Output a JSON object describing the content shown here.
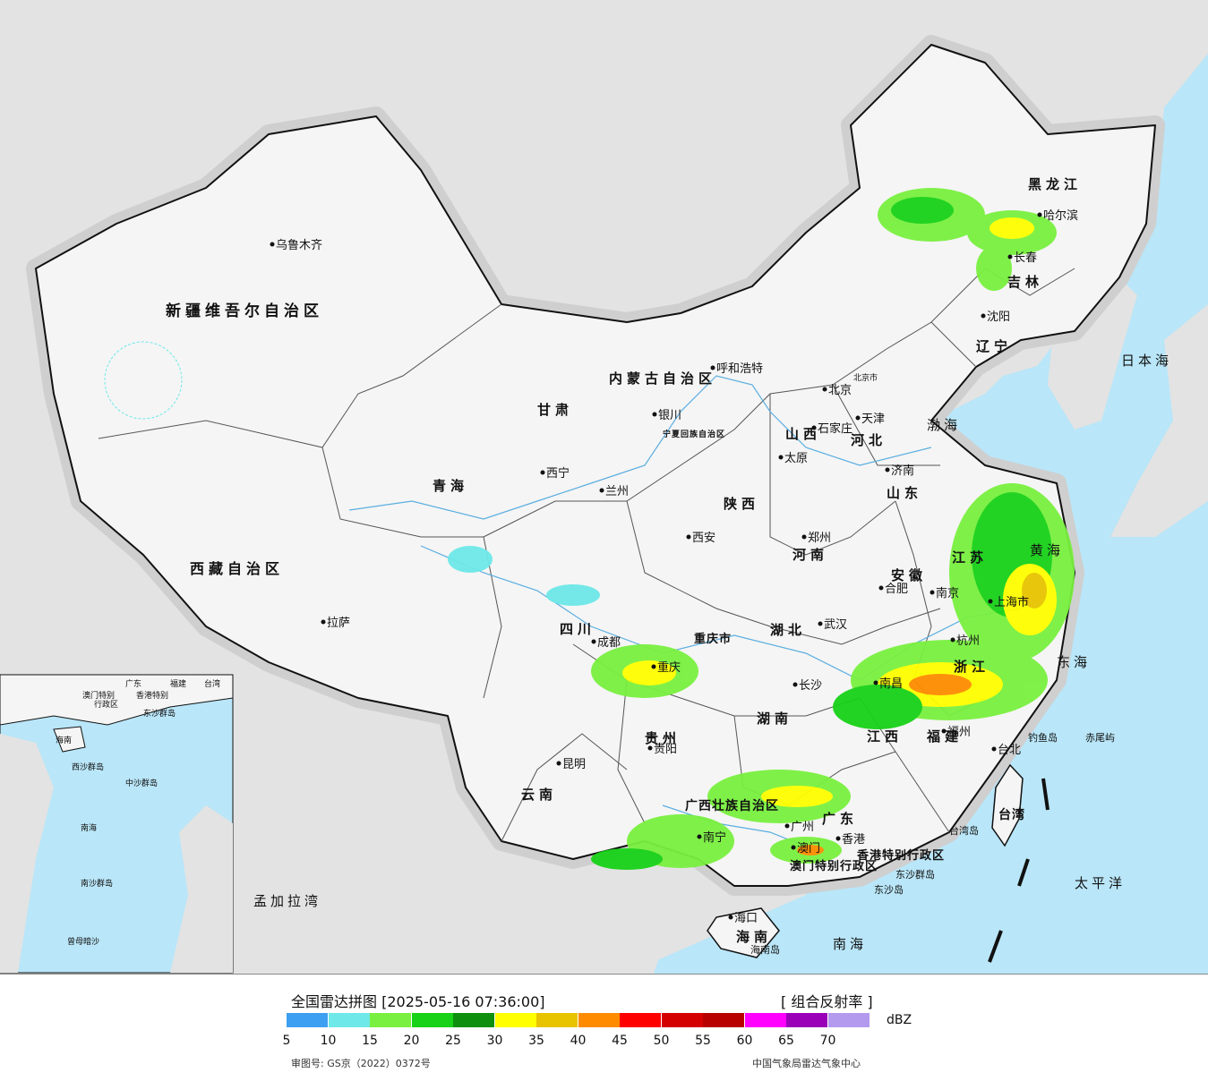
{
  "map": {
    "colors": {
      "sea": "#b9e6f8",
      "land_foreign": "#e3e3e3",
      "land_china": "#f5f5f5",
      "halo": "#cfcfcf",
      "border": "#111111",
      "river": "#5aaee0"
    },
    "cities": [
      {
        "name": "乌鲁木齐",
        "dot": true
      },
      {
        "name": "拉萨",
        "dot": true
      },
      {
        "name": "西宁",
        "dot": true
      },
      {
        "name": "兰州",
        "dot": true
      },
      {
        "name": "银川",
        "dot": true
      },
      {
        "name": "呼和浩特",
        "dot": true
      },
      {
        "name": "北京",
        "dot": true
      },
      {
        "name": "北京市",
        "dot": false
      },
      {
        "name": "天津",
        "dot": true
      },
      {
        "name": "石家庄",
        "dot": true
      },
      {
        "name": "太原",
        "dot": true
      },
      {
        "name": "济南",
        "dot": true
      },
      {
        "name": "郑州",
        "dot": true
      },
      {
        "name": "西安",
        "dot": true
      },
      {
        "name": "成都",
        "dot": true
      },
      {
        "name": "重庆",
        "dot": true
      },
      {
        "name": "武汉",
        "dot": true
      },
      {
        "name": "合肥",
        "dot": true
      },
      {
        "name": "南京",
        "dot": true
      },
      {
        "name": "上海市",
        "dot": true
      },
      {
        "name": "杭州",
        "dot": true
      },
      {
        "name": "长沙",
        "dot": true
      },
      {
        "name": "南昌",
        "dot": true
      },
      {
        "name": "福州",
        "dot": true
      },
      {
        "name": "台北",
        "dot": true
      },
      {
        "name": "贵阳",
        "dot": true
      },
      {
        "name": "昆明",
        "dot": true
      },
      {
        "name": "南宁",
        "dot": true
      },
      {
        "name": "广州",
        "dot": true
      },
      {
        "name": "香港",
        "dot": true
      },
      {
        "name": "澳门",
        "dot": true
      },
      {
        "name": "海口",
        "dot": true
      },
      {
        "name": "沈阳",
        "dot": true
      },
      {
        "name": "长春",
        "dot": true
      },
      {
        "name": "哈尔滨",
        "dot": true
      }
    ],
    "regions": [
      "新疆维吾尔自治区",
      "西藏自治区",
      "青海",
      "甘肃",
      "内蒙古自治区",
      "四川",
      "云南",
      "贵州",
      "广西壮族自治区",
      "广东",
      "湖南",
      "湖北",
      "河南",
      "河北",
      "山西",
      "陕西",
      "山东",
      "江苏",
      "安徽",
      "浙江",
      "江西",
      "福建",
      "台湾",
      "海南",
      "辽宁",
      "吉林",
      "黑龙江",
      "重庆市",
      "宁夏回族自治区",
      "香港特别行政区",
      "澳门特别行政区"
    ],
    "places": [
      "台湾岛",
      "钓鱼岛",
      "赤尾屿",
      "东沙群岛",
      "东沙岛",
      "海南岛"
    ],
    "seas": [
      "日本海",
      "渤海",
      "黄海",
      "东海",
      "太平洋",
      "南海",
      "孟加拉湾"
    ],
    "inset": {
      "labels": [
        "广东",
        "福建",
        "台湾",
        "香港特别",
        "澳门特别",
        "行政区",
        "东沙群岛",
        "海南",
        "西沙群岛",
        "中沙群岛",
        "南海",
        "南沙群岛",
        "曾母暗沙"
      ]
    }
  },
  "legend": {
    "title": "全国雷达拼图 [2025-05-16 07:36:00]",
    "product": "[ 组合反射率 ]",
    "unit": "dBZ",
    "ticks": [
      "5",
      "10",
      "15",
      "20",
      "25",
      "30",
      "35",
      "40",
      "45",
      "50",
      "55",
      "60",
      "65",
      "70"
    ],
    "colors": [
      "#3d9ff1",
      "#6ee8e8",
      "#79f03f",
      "#18d218",
      "#0e8f0e",
      "#ffff00",
      "#e8c400",
      "#ff8c00",
      "#ff0000",
      "#d40000",
      "#b80000",
      "#ff00ff",
      "#9a00b8",
      "#b49aee"
    ],
    "approval": "审图号: GS京（2022）0372号",
    "agency": "中国气象局雷达气象中心"
  }
}
